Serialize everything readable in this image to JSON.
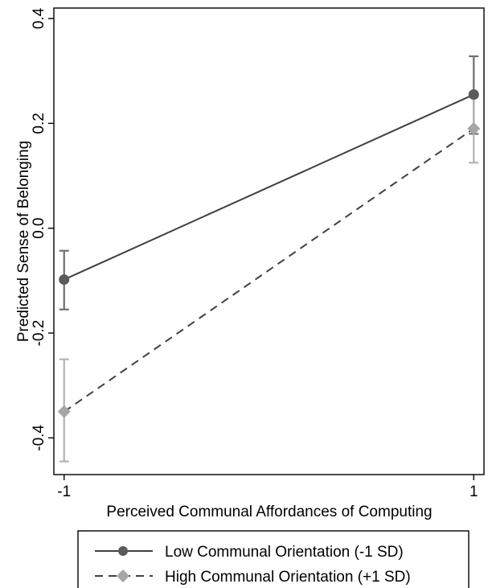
{
  "chart_data": {
    "type": "line",
    "title": "",
    "xlabel": "Perceived Communal Affordances of Computing",
    "ylabel": "Predicted Sense of Belonging",
    "x": [
      -1,
      1
    ],
    "x_ticks": [
      -1,
      1
    ],
    "x_tick_labels": [
      "-1",
      "1"
    ],
    "xlim": [
      -1.05,
      1.05
    ],
    "y_ticks": [
      -0.4,
      -0.2,
      0.0,
      0.2,
      0.4
    ],
    "y_tick_labels": [
      "-0.4",
      "-0.2",
      "0.0",
      "0.2",
      "0.4"
    ],
    "ylim": [
      -0.47,
      0.42
    ],
    "grid": false,
    "legend_position": "bottom",
    "series": [
      {
        "name": "Low Communal Orientation (-1 SD)",
        "values": [
          -0.098,
          0.255
        ],
        "ci_low": [
          -0.155,
          0.18
        ],
        "ci_high": [
          -0.043,
          0.328
        ],
        "color": "#404040",
        "line_style": "solid",
        "marker": "circle"
      },
      {
        "name": "High Communal Orientation (+1 SD)",
        "values": [
          -0.35,
          0.19
        ],
        "ci_low": [
          -0.445,
          0.125
        ],
        "ci_high": [
          -0.25,
          0.25
        ],
        "color": "#a6a6a6",
        "line_style": "dashed",
        "marker": "diamond"
      }
    ]
  }
}
